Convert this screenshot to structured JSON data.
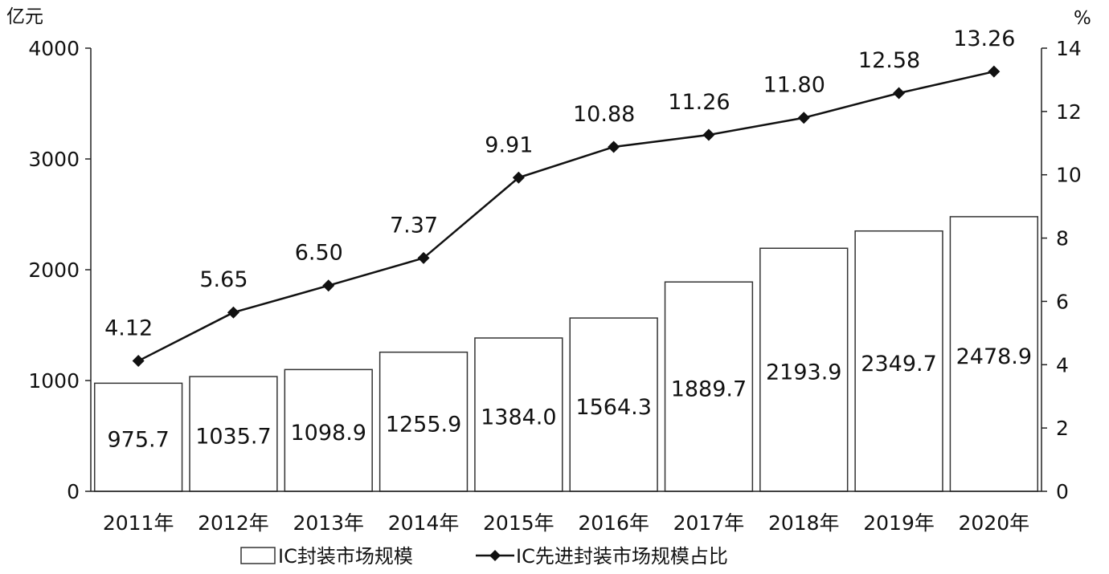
{
  "chart_data": {
    "type": "bar",
    "categories": [
      "2011年",
      "2012年",
      "2013年",
      "2014年",
      "2015年",
      "2016年",
      "2017年",
      "2018年",
      "2019年",
      "2020年"
    ],
    "series": [
      {
        "name": "IC封装市场规模",
        "type": "bar",
        "axis": "left",
        "values": [
          975.7,
          1035.7,
          1098.9,
          1255.9,
          1384.0,
          1564.3,
          1889.7,
          2193.9,
          2349.7,
          2478.9
        ],
        "labels": [
          "975.7",
          "1035.7",
          "1098.9",
          "1255.9",
          "1384.0",
          "1564.3",
          "1889.7",
          "2193.9",
          "2349.7",
          "2478.9"
        ]
      },
      {
        "name": "IC先进封装市场规模占比",
        "type": "line",
        "axis": "right",
        "values": [
          4.12,
          5.65,
          6.5,
          7.37,
          9.91,
          10.88,
          11.26,
          11.8,
          12.58,
          13.26
        ],
        "labels": [
          "4.12",
          "5.65",
          "6.50",
          "7.37",
          "9.91",
          "10.88",
          "11.26",
          "11.80",
          "12.58",
          "13.26"
        ]
      }
    ],
    "y_left": {
      "unit": "亿元",
      "ylim": [
        0,
        4000
      ],
      "ticks": [
        "0",
        "1000",
        "2000",
        "3000",
        "4000"
      ]
    },
    "y_right": {
      "unit": "%",
      "ylim": [
        0,
        14
      ],
      "ticks": [
        "0",
        "2",
        "4",
        "6",
        "8",
        "10",
        "12",
        "14"
      ]
    },
    "grid": false,
    "legend_position": "bottom"
  }
}
